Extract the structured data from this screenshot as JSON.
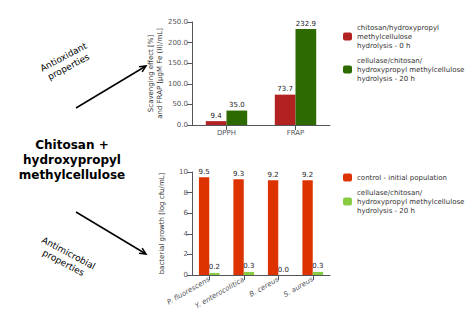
{
  "chart_data": [
    {
      "type": "bar",
      "annotations": [
        "Chitosan +\nhydroxypropyl\nmethylcellulose",
        "Antioxidant\nproperties",
        "Antimicrobial\nproperties"
      ],
      "ylabel": "Scavenging effect [%]\nand FRAP [μgM Fe (II)/mL]",
      "categories": [
        "DPPH",
        "FRAP"
      ],
      "series": [
        {
          "name": "chitosan/hydroxypropyl\nmethylcellulose\nhydrolysis - 0 h",
          "color": "#b22222",
          "values": [
            9.4,
            73.7
          ],
          "value_labels": [
            "9.4",
            "73.7"
          ]
        },
        {
          "name": "cellulase/chitosan/\nhydroxypropyl methylcellulose\nhydrolysis - 20 h",
          "color": "#2d6a00",
          "values": [
            35.0,
            232.9
          ],
          "value_labels": [
            "35.0",
            "232.9"
          ]
        }
      ],
      "ylim": [
        0,
        250
      ],
      "yticks": [
        {
          "value": 0,
          "label": "0.0"
        },
        {
          "value": 50,
          "label": "50.0"
        },
        {
          "value": 100,
          "label": "100.0"
        },
        {
          "value": 150,
          "label": "150.0"
        },
        {
          "value": 200,
          "label": "200.0"
        },
        {
          "value": 250,
          "label": "250.0"
        }
      ],
      "grid": false,
      "legend": "right",
      "data_labels": true
    },
    {
      "type": "bar",
      "ylabel": "bacterial growth [log cfu/mL]",
      "categories": [
        "P. fluorescens",
        "Y. enterocolitica",
        "B. cereus",
        "S. aureus"
      ],
      "series": [
        {
          "name": "control - initial population",
          "color": "#dd3300",
          "values": [
            9.5,
            9.3,
            9.2,
            9.2
          ],
          "value_labels": [
            "9.5",
            "9.3",
            "9.2",
            "9.2"
          ]
        },
        {
          "name": "cellulase/chitosan/\nhydroxypropyl methylcellulose\nhydrolysis - 20 h",
          "color": "#88cc44",
          "values": [
            0.2,
            0.3,
            0.0,
            0.3
          ],
          "value_labels": [
            "0.2",
            "0.3",
            "0.0",
            "0.3"
          ]
        }
      ],
      "ylim": [
        0,
        10
      ],
      "yticks": [
        0,
        2,
        4,
        6,
        8,
        10
      ],
      "grid": false,
      "legend": "right",
      "data_labels": true
    }
  ]
}
